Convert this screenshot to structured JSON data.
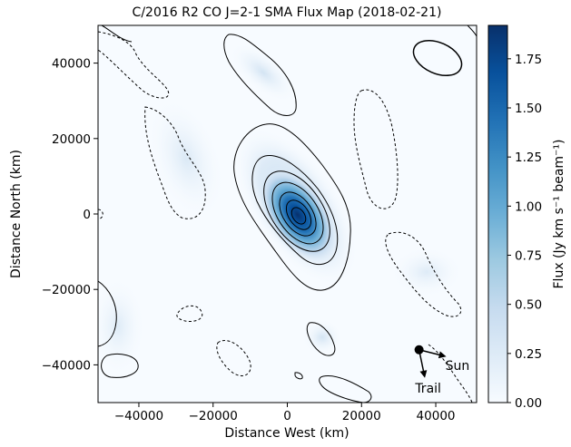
{
  "chart_data": {
    "type": "heatmap",
    "title": "C/2016 R2 CO J=2-1 SMA Flux Map (2018-02-21)",
    "xlabel": "Distance West (km)",
    "ylabel": "Distance North (km)",
    "xlim": [
      -51000,
      51000
    ],
    "ylim": [
      -50000,
      50000
    ],
    "x_ticks": [
      -40000,
      -20000,
      0,
      20000,
      40000
    ],
    "x_tick_labels": [
      "−40000",
      "−20000",
      "0",
      "20000",
      "40000"
    ],
    "y_ticks": [
      40000,
      20000,
      0,
      -20000,
      -40000
    ],
    "y_tick_labels": [
      "40000",
      "20000",
      "0",
      "−20000",
      "−40000"
    ],
    "colormap": "Blues",
    "colorbar": {
      "label": "Flux (Jy km s⁻¹ beam⁻¹)",
      "range": [
        0,
        1.92
      ],
      "ticks": [
        0.0,
        0.25,
        0.5,
        0.75,
        1.0,
        1.25,
        1.5,
        1.75
      ],
      "tick_labels": [
        "0.00",
        "0.25",
        "0.50",
        "0.75",
        "1.00",
        "1.25",
        "1.50",
        "1.75"
      ]
    },
    "peak": {
      "x": 3000,
      "y": -1000,
      "value": 1.9
    },
    "direction_arrows": {
      "origin": {
        "x": 35500,
        "y": -36000
      },
      "sun_label": "Sun",
      "trail_label": "Trail"
    },
    "colors": {
      "contour": "#000000",
      "low": "#f7fbff",
      "high": "#08306b"
    }
  }
}
